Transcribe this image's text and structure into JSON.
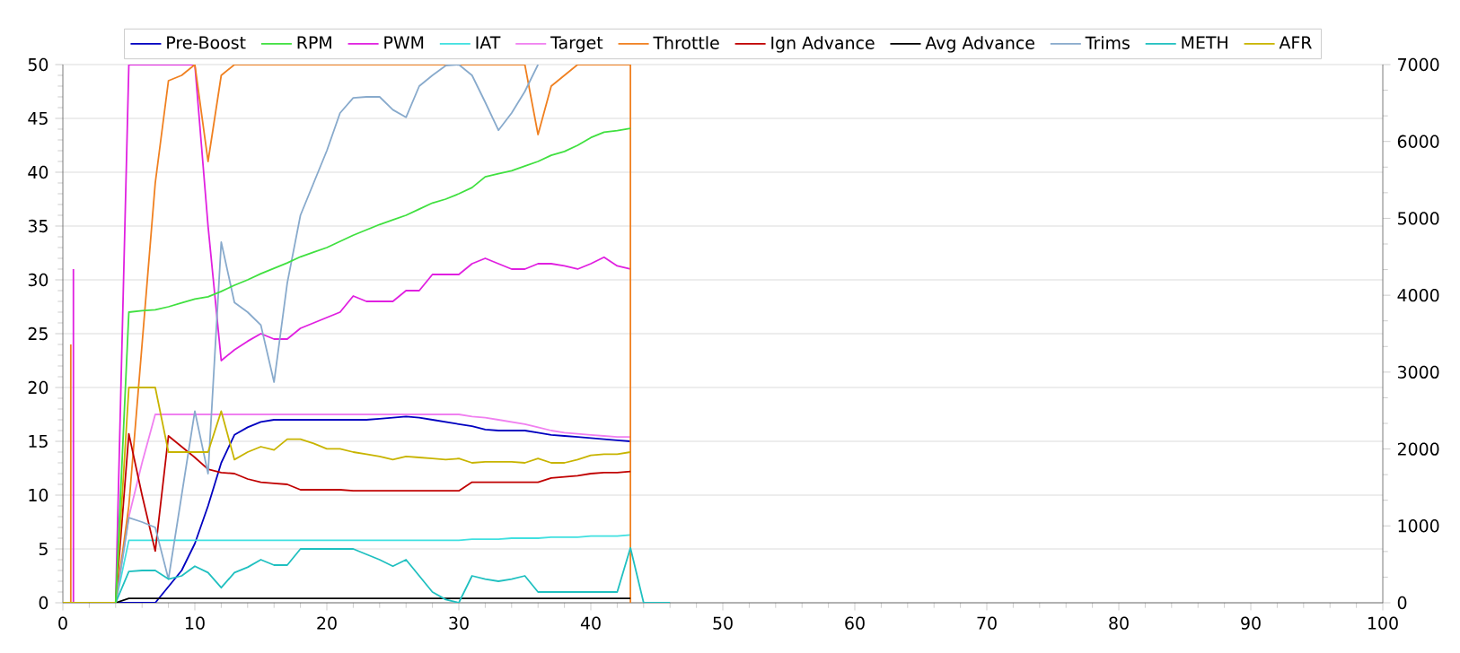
{
  "chart_data": {
    "type": "line",
    "x": [
      0,
      1,
      2,
      3,
      4,
      5,
      6,
      7,
      8,
      9,
      10,
      11,
      12,
      13,
      14,
      15,
      16,
      17,
      18,
      19,
      20,
      21,
      22,
      23,
      24,
      25,
      26,
      27,
      28,
      29,
      30,
      31,
      32,
      33,
      34,
      35,
      36,
      37,
      38,
      39,
      40,
      41,
      42,
      43,
      44,
      45,
      46
    ],
    "xlim": [
      0,
      100
    ],
    "xticks": [
      0,
      10,
      20,
      30,
      40,
      50,
      60,
      70,
      80,
      90,
      100
    ],
    "ylim": [
      0,
      50
    ],
    "yticks": [
      0,
      5,
      10,
      15,
      20,
      25,
      30,
      35,
      40,
      45,
      50
    ],
    "y2lim": [
      0,
      7000
    ],
    "y2ticks": [
      0,
      1000,
      2000,
      3000,
      4000,
      5000,
      6000,
      7000
    ],
    "grid": "y",
    "legend": "top",
    "series": [
      {
        "name": "Pre-Boost",
        "color": "#0000c0",
        "values": [
          null,
          null,
          null,
          null,
          0,
          0,
          0,
          0,
          1.5,
          3,
          5.5,
          9,
          13,
          15.6,
          16.3,
          16.8,
          17,
          17,
          17,
          17,
          17,
          17,
          17,
          17,
          17.1,
          17.2,
          17.3,
          17.2,
          17,
          16.8,
          16.6,
          16.4,
          16.1,
          16,
          16,
          16,
          15.8,
          15.6,
          15.5,
          15.4,
          15.3,
          15.2,
          15.1,
          15,
          null,
          null,
          null
        ]
      },
      {
        "name": "RPM",
        "color": "#40e040",
        "axis": "y2",
        "values": [
          null,
          null,
          null,
          null,
          0,
          3780,
          3800,
          3810,
          3850,
          3900,
          3950,
          3980,
          4050,
          4130,
          4200,
          4280,
          4350,
          4420,
          4500,
          4560,
          4620,
          4700,
          4780,
          4850,
          4920,
          4980,
          5040,
          5120,
          5200,
          5250,
          5320,
          5400,
          5540,
          5580,
          5620,
          5680,
          5740,
          5820,
          5870,
          5950,
          6050,
          6120,
          6140,
          6170,
          null,
          null,
          null
        ]
      },
      {
        "name": "PWM",
        "color": "#e020e0",
        "x": [
          0.8,
          0.8,
          2,
          3,
          4,
          5,
          6,
          7,
          8,
          9,
          10,
          11,
          12,
          13,
          14,
          15,
          16,
          17,
          18,
          19,
          20,
          21,
          22,
          23,
          24,
          25,
          26,
          27,
          28,
          29,
          30,
          31,
          32,
          33,
          34,
          35,
          36,
          37,
          38,
          39,
          40,
          41,
          42,
          43
        ],
        "values": [
          0,
          31,
          null,
          null,
          0,
          50,
          50,
          50,
          50,
          50,
          50,
          35,
          22.5,
          23.5,
          24.3,
          25,
          24.5,
          24.5,
          25.5,
          26,
          26.5,
          27,
          28.5,
          28,
          28,
          28,
          29,
          29,
          30.5,
          30.5,
          30.5,
          31.5,
          32,
          31.5,
          31,
          31,
          31.5,
          31.5,
          31.3,
          31,
          31.5,
          32.1,
          31.3,
          31
        ]
      },
      {
        "name": "IAT",
        "color": "#40e0e0",
        "values": [
          null,
          null,
          null,
          null,
          0,
          5.8,
          5.8,
          5.8,
          5.8,
          5.8,
          5.8,
          5.8,
          5.8,
          5.8,
          5.8,
          5.8,
          5.8,
          5.8,
          5.8,
          5.8,
          5.8,
          5.8,
          5.8,
          5.8,
          5.8,
          5.8,
          5.8,
          5.8,
          5.8,
          5.8,
          5.8,
          5.9,
          5.9,
          5.9,
          6,
          6,
          6,
          6.1,
          6.1,
          6.1,
          6.2,
          6.2,
          6.2,
          6.3,
          null,
          null,
          null
        ]
      },
      {
        "name": "Target",
        "color": "#f080f0",
        "values": [
          null,
          null,
          null,
          null,
          0,
          8,
          13,
          17.5,
          17.5,
          17.5,
          17.5,
          17.5,
          17.5,
          17.5,
          17.5,
          17.5,
          17.5,
          17.5,
          17.5,
          17.5,
          17.5,
          17.5,
          17.5,
          17.5,
          17.5,
          17.5,
          17.5,
          17.5,
          17.5,
          17.5,
          17.5,
          17.3,
          17.2,
          17,
          16.8,
          16.6,
          16.3,
          16,
          15.8,
          15.7,
          15.6,
          15.5,
          15.4,
          15.4,
          null,
          null,
          null
        ]
      },
      {
        "name": "Throttle",
        "color": "#f08020",
        "x": [
          0.6,
          0.6,
          2,
          3,
          4,
          5,
          6,
          7,
          8,
          9,
          10,
          11,
          12,
          13,
          14,
          15,
          16,
          17,
          18,
          19,
          20,
          21,
          22,
          23,
          24,
          25,
          26,
          27,
          28,
          29,
          30,
          31,
          32,
          33,
          34,
          35,
          36,
          37,
          38,
          39,
          40,
          41,
          42,
          43,
          43
        ],
        "values": [
          0,
          24,
          null,
          null,
          0,
          9,
          24,
          39,
          48.5,
          49,
          50,
          41,
          49,
          50,
          50,
          50,
          50,
          50,
          50,
          50,
          50,
          50,
          50,
          50,
          50,
          50,
          50,
          50,
          50,
          50,
          50,
          50,
          50,
          50,
          50,
          50,
          43.5,
          48,
          49,
          50,
          50,
          50,
          50,
          50,
          0
        ]
      },
      {
        "name": "Ign Advance",
        "color": "#c00000",
        "values": [
          null,
          null,
          null,
          null,
          0,
          15.7,
          10,
          4.8,
          15.5,
          14.5,
          13.5,
          12.4,
          12.1,
          12,
          11.5,
          11.2,
          11.1,
          11,
          10.5,
          10.5,
          10.5,
          10.5,
          10.4,
          10.4,
          10.4,
          10.4,
          10.4,
          10.4,
          10.4,
          10.4,
          10.4,
          11.2,
          11.2,
          11.2,
          11.2,
          11.2,
          11.2,
          11.6,
          11.7,
          11.8,
          12,
          12.1,
          12.1,
          12.2,
          null,
          null,
          null
        ]
      },
      {
        "name": "Avg Advance",
        "color": "#000000",
        "values": [
          null,
          null,
          null,
          null,
          0,
          0.4,
          0.4,
          0.4,
          0.4,
          0.4,
          0.4,
          0.4,
          0.4,
          0.4,
          0.4,
          0.4,
          0.4,
          0.4,
          0.4,
          0.4,
          0.4,
          0.4,
          0.4,
          0.4,
          0.4,
          0.4,
          0.4,
          0.4,
          0.4,
          0.4,
          0.4,
          0.4,
          0.4,
          0.4,
          0.4,
          0.4,
          0.4,
          0.4,
          0.4,
          0.4,
          0.4,
          0.4,
          0.4,
          0.4,
          null,
          null,
          null
        ]
      },
      {
        "name": "Trims",
        "color": "#88aacc",
        "values": [
          null,
          null,
          null,
          null,
          0,
          7.9,
          7.5,
          7,
          2.2,
          10,
          17.8,
          12,
          33.5,
          27.9,
          27,
          25.8,
          20.5,
          29.7,
          36,
          39,
          42,
          45.5,
          46.9,
          47,
          47,
          45.8,
          45.1,
          48,
          49,
          49.9,
          50,
          49,
          46.5,
          43.9,
          45.5,
          47.5,
          50,
          null,
          null,
          null,
          null,
          null,
          null,
          null,
          null,
          null,
          null
        ]
      },
      {
        "name": "METH",
        "color": "#20c0c0",
        "values": [
          null,
          null,
          null,
          null,
          0,
          2.9,
          3,
          3,
          2.2,
          2.5,
          3.4,
          2.8,
          1.4,
          2.8,
          3.3,
          4,
          3.5,
          3.5,
          5,
          5,
          5,
          5,
          5,
          4.5,
          4,
          3.4,
          4,
          2.5,
          1,
          0.3,
          0,
          2.5,
          2.2,
          2,
          2.2,
          2.5,
          1,
          1,
          1,
          1,
          1,
          1,
          1,
          5.1,
          0,
          0,
          0
        ]
      },
      {
        "name": "AFR",
        "color": "#c8b400",
        "values": [
          0,
          0,
          0,
          0,
          0,
          20,
          20,
          20,
          14,
          14,
          14,
          14,
          17.8,
          13.3,
          14,
          14.5,
          14.2,
          15.2,
          15.2,
          14.8,
          14.3,
          14.3,
          14,
          13.8,
          13.6,
          13.3,
          13.6,
          13.5,
          13.4,
          13.3,
          13.4,
          13,
          13.1,
          13.1,
          13.1,
          13,
          13.4,
          13,
          13,
          13.3,
          13.7,
          13.8,
          13.8,
          14,
          null,
          null,
          null
        ]
      }
    ]
  }
}
